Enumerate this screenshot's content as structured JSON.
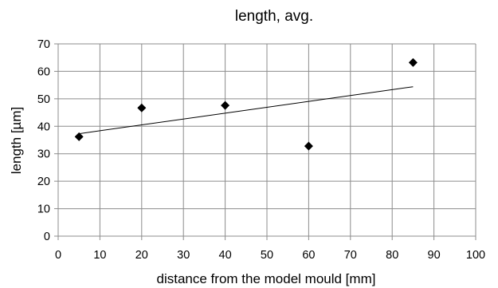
{
  "chart_data": {
    "type": "scatter",
    "title": "length, avg.",
    "xlabel": "distance from the model mould [mm]",
    "ylabel": "length [µm]",
    "xlim": [
      0,
      100
    ],
    "ylim": [
      0,
      70
    ],
    "xticks": [
      0,
      10,
      20,
      30,
      40,
      50,
      60,
      70,
      80,
      90,
      100
    ],
    "yticks": [
      0,
      10,
      20,
      30,
      40,
      50,
      60,
      70
    ],
    "grid": true,
    "series": [
      {
        "marker": "diamond",
        "color": "#000000",
        "points": [
          {
            "x": 5,
            "y": 36.2
          },
          {
            "x": 20,
            "y": 46.7
          },
          {
            "x": 40,
            "y": 47.6
          },
          {
            "x": 60,
            "y": 32.8
          },
          {
            "x": 85,
            "y": 63.2
          }
        ]
      }
    ],
    "trendline": {
      "type": "linear",
      "from": {
        "x": 5,
        "y": 37.3
      },
      "to": {
        "x": 85,
        "y": 54.4
      }
    }
  }
}
